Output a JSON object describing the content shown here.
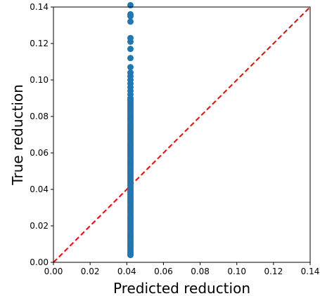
{
  "chart_data": {
    "type": "scatter",
    "title": "",
    "xlabel": "Predicted reduction",
    "ylabel": "True reduction",
    "xlim": [
      0.0,
      0.14
    ],
    "ylim": [
      0.0,
      0.14
    ],
    "x_ticks": [
      "0.00",
      "0.02",
      "0.04",
      "0.06",
      "0.08",
      "0.10",
      "0.12",
      "0.14"
    ],
    "y_ticks": [
      "0.00",
      "0.02",
      "0.04",
      "0.06",
      "0.08",
      "0.10",
      "0.12",
      "0.14"
    ],
    "grid": false,
    "legend": "none",
    "point_color": "#1f77b4",
    "reference_line": {
      "style": "dashed",
      "color": "#ff0000",
      "from": [
        0.0,
        0.0
      ],
      "to": [
        0.14,
        0.14
      ]
    },
    "series": [
      {
        "x": [
          0.042,
          0.042,
          0.042,
          0.042,
          0.042,
          0.042,
          0.042,
          0.042,
          0.042,
          0.042,
          0.042,
          0.042,
          0.042,
          0.042,
          0.042,
          0.042,
          0.042,
          0.042,
          0.042,
          0.042,
          0.042,
          0.042,
          0.042,
          0.042,
          0.042,
          0.042,
          0.042,
          0.042,
          0.042,
          0.042,
          0.042,
          0.042,
          0.042,
          0.042,
          0.042,
          0.042,
          0.042,
          0.042,
          0.042,
          0.042,
          0.042,
          0.042,
          0.042,
          0.042,
          0.042,
          0.042,
          0.042,
          0.042,
          0.042,
          0.042,
          0.042,
          0.042,
          0.042,
          0.042,
          0.042,
          0.042,
          0.042,
          0.042,
          0.042,
          0.042,
          0.042,
          0.042,
          0.042,
          0.042,
          0.042,
          0.042,
          0.042,
          0.042,
          0.042,
          0.042,
          0.042,
          0.042,
          0.042,
          0.042,
          0.042,
          0.042,
          0.042,
          0.042,
          0.042,
          0.042,
          0.042,
          0.042,
          0.042,
          0.042,
          0.042,
          0.042,
          0.042,
          0.042,
          0.042,
          0.042,
          0.042,
          0.042,
          0.042,
          0.042,
          0.042
        ],
        "y": [
          0.004,
          0.005,
          0.006,
          0.007,
          0.008,
          0.009,
          0.01,
          0.011,
          0.012,
          0.013,
          0.014,
          0.015,
          0.016,
          0.017,
          0.018,
          0.019,
          0.02,
          0.021,
          0.022,
          0.023,
          0.024,
          0.025,
          0.026,
          0.027,
          0.028,
          0.029,
          0.03,
          0.031,
          0.032,
          0.033,
          0.034,
          0.035,
          0.036,
          0.037,
          0.038,
          0.039,
          0.04,
          0.041,
          0.042,
          0.043,
          0.044,
          0.045,
          0.046,
          0.047,
          0.048,
          0.049,
          0.05,
          0.051,
          0.052,
          0.053,
          0.054,
          0.055,
          0.056,
          0.057,
          0.058,
          0.059,
          0.06,
          0.061,
          0.062,
          0.063,
          0.064,
          0.065,
          0.066,
          0.067,
          0.068,
          0.069,
          0.07,
          0.071,
          0.072,
          0.073,
          0.074,
          0.075,
          0.076,
          0.077,
          0.078,
          0.079,
          0.08,
          0.081,
          0.082,
          0.083,
          0.084,
          0.085,
          0.086,
          0.087,
          0.088,
          0.089,
          0.09,
          0.092,
          0.094,
          0.096,
          0.098,
          0.1,
          0.102,
          0.104,
          0.107
        ]
      },
      {
        "x": [
          0.042,
          0.042,
          0.042,
          0.042,
          0.042,
          0.042,
          0.042,
          0.042
        ],
        "y": [
          0.112,
          0.117,
          0.121,
          0.123,
          0.132,
          0.135,
          0.136,
          0.141
        ]
      }
    ]
  }
}
